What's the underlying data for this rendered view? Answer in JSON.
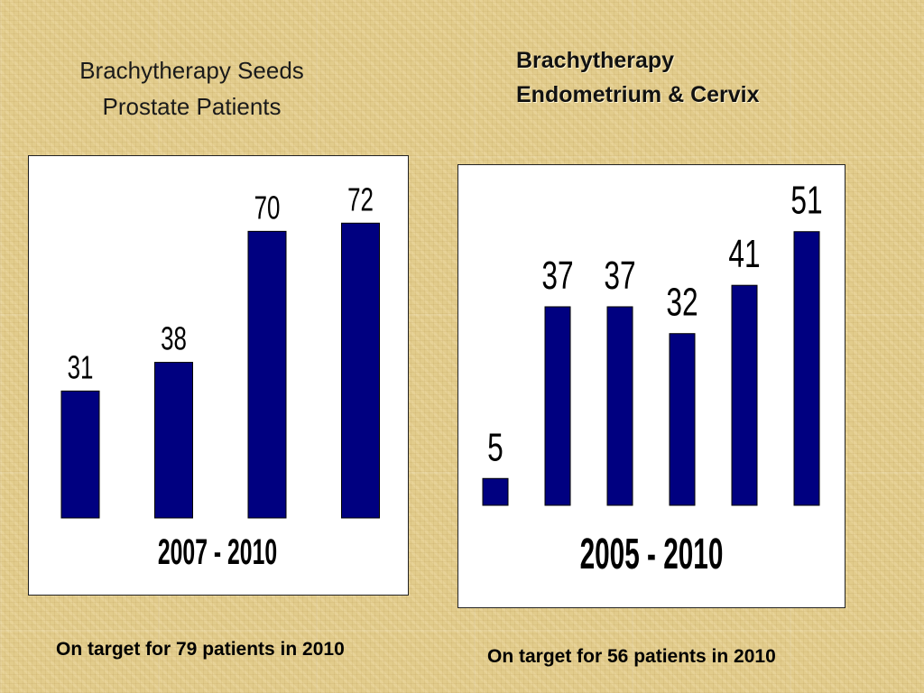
{
  "chart_data": [
    {
      "type": "bar",
      "title_lines": [
        "Brachytherapy Seeds",
        "Prostate Patients"
      ],
      "xlabel": "2007 - 2010",
      "values": [
        31,
        38,
        70,
        72
      ],
      "ylim": [
        0,
        80
      ],
      "bar_color": "#000080",
      "grid": false,
      "note": "On target for 79 patients in 2010"
    },
    {
      "type": "bar",
      "title_lines": [
        "Brachytherapy",
        "Endometrium & Cervix"
      ],
      "xlabel": "2005 - 2010",
      "values": [
        5,
        37,
        37,
        32,
        41,
        51
      ],
      "ylim": [
        0,
        56
      ],
      "bar_color": "#000080",
      "grid": false,
      "note": "On target for 56 patients in 2010"
    }
  ]
}
